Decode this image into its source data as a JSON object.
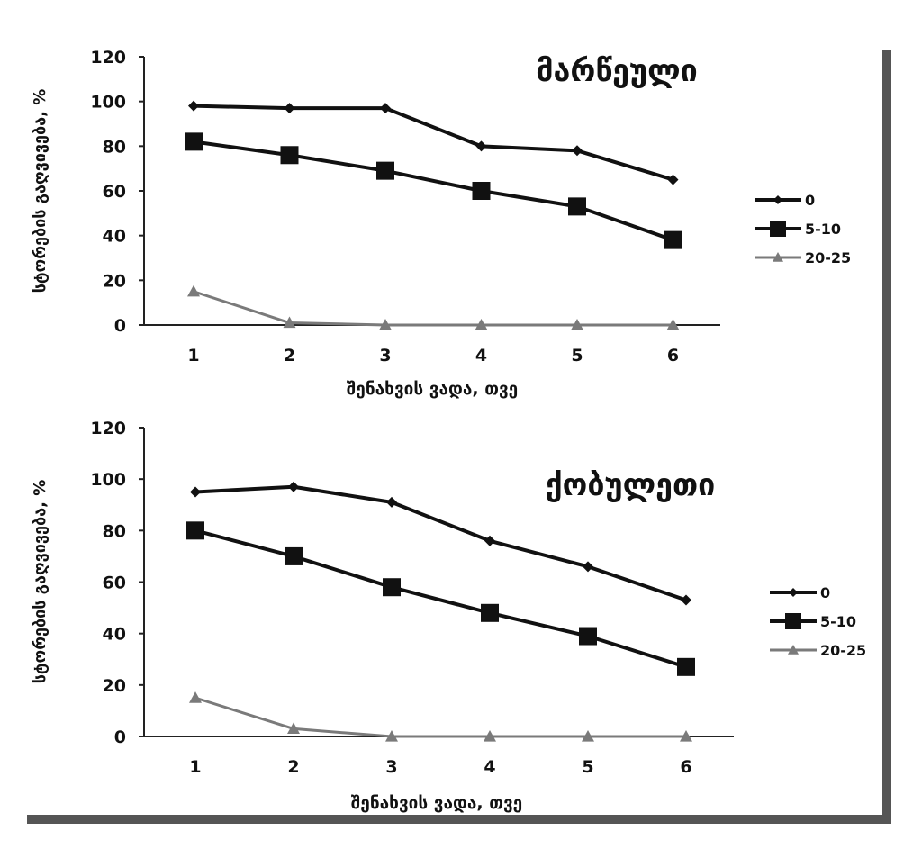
{
  "chart_data": [
    {
      "type": "line",
      "title": "მარწეული",
      "xlabel": "შენახვის ვადა, თვე",
      "ylabel": "სტორების გაღვივება, %",
      "categories": [
        "1",
        "2",
        "3",
        "4",
        "5",
        "6"
      ],
      "ylim": [
        0,
        120
      ],
      "yticks": [
        "0",
        "20",
        "40",
        "60",
        "80",
        "100",
        "120"
      ],
      "legend_position": "right",
      "grid": false,
      "series": [
        {
          "name": "0",
          "values": [
            98,
            97,
            97,
            80,
            78,
            65
          ],
          "color": "#111111",
          "marker": "diamond"
        },
        {
          "name": "5-10",
          "values": [
            82,
            76,
            69,
            60,
            53,
            38
          ],
          "color": "#111111",
          "marker": "square"
        },
        {
          "name": "20-25",
          "values": [
            15,
            1,
            0,
            0,
            0,
            0
          ],
          "color": "#7a7a7a",
          "marker": "triangle"
        }
      ]
    },
    {
      "type": "line",
      "title": "ქობულეთი",
      "xlabel": "შენახვის  ვადა, თვე",
      "ylabel": "სტორების გაღვივება, %",
      "categories": [
        "1",
        "2",
        "3",
        "4",
        "5",
        "6"
      ],
      "ylim": [
        0,
        120
      ],
      "yticks": [
        "0",
        "20",
        "40",
        "60",
        "80",
        "100",
        "120"
      ],
      "legend_position": "right",
      "grid": false,
      "series": [
        {
          "name": "0",
          "values": [
            95,
            97,
            91,
            76,
            66,
            53
          ],
          "color": "#111111",
          "marker": "diamond"
        },
        {
          "name": "5-10",
          "values": [
            80,
            70,
            58,
            48,
            39,
            27
          ],
          "color": "#111111",
          "marker": "square"
        },
        {
          "name": "20-25",
          "values": [
            15,
            3,
            0,
            0,
            0,
            0
          ],
          "color": "#7a7a7a",
          "marker": "triangle"
        }
      ]
    }
  ]
}
